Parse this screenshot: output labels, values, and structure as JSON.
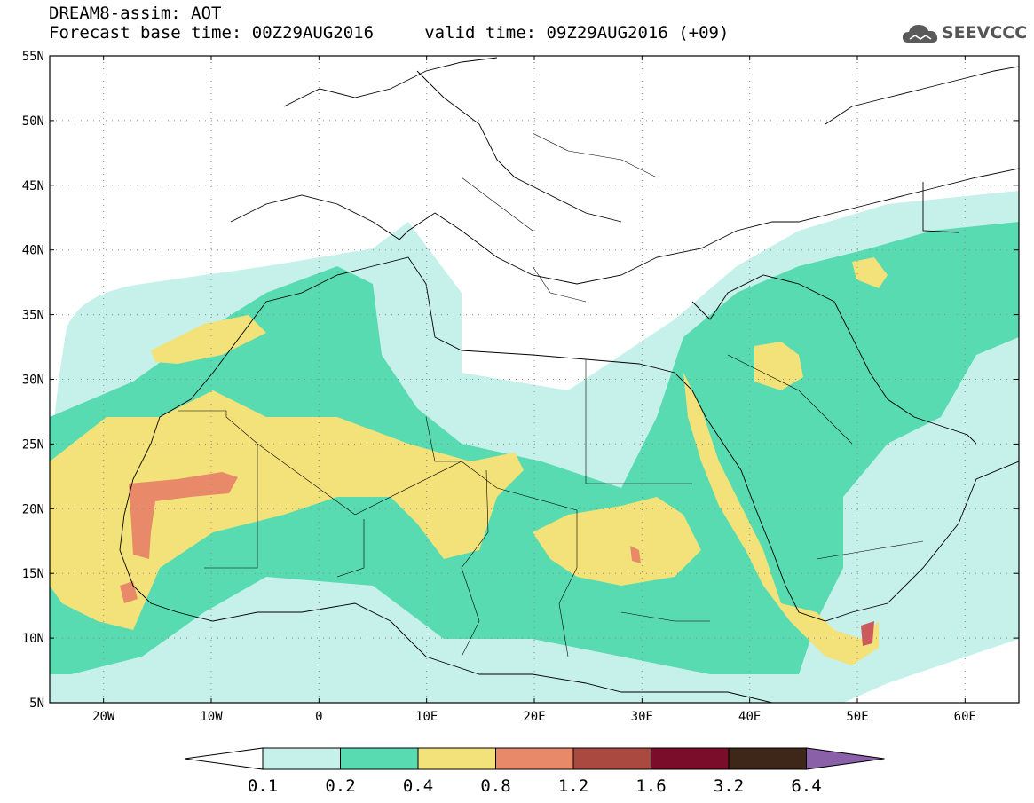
{
  "header": {
    "line1": "DREAM8-assim: AOT",
    "line2": "Forecast base time: 00Z29AUG2016     valid time: 09Z29AUG2016 (+09)"
  },
  "logo": {
    "text": "SEEVCCC",
    "icon": "cloud-icon"
  },
  "map": {
    "lon_range": [
      -25,
      65
    ],
    "lat_range": [
      5,
      55
    ],
    "lat_labels": [
      "55N",
      "50N",
      "45N",
      "40N",
      "35N",
      "30N",
      "25N",
      "20N",
      "15N",
      "10N",
      "5N"
    ],
    "lon_labels": [
      "20W",
      "10W",
      "0",
      "10E",
      "20E",
      "30E",
      "40E",
      "50E",
      "60E"
    ],
    "grid": "dotted",
    "colors": {
      "c1": "#c6f0ea",
      "c2": "#58dbb0",
      "c3": "#f3e27a",
      "c4": "#e88a6a",
      "c5": "#cc5a5a"
    }
  },
  "colorbar": {
    "labels": [
      "0.1",
      "0.2",
      "0.4",
      "0.8",
      "1.2",
      "1.6",
      "3.2",
      "6.4"
    ],
    "colors": [
      "#ffffff",
      "#c6f0ea",
      "#58dbb0",
      "#f3e27a",
      "#e88a6a",
      "#a9493f",
      "#7a0d2a",
      "#3e2718",
      "#8a61a8"
    ]
  }
}
